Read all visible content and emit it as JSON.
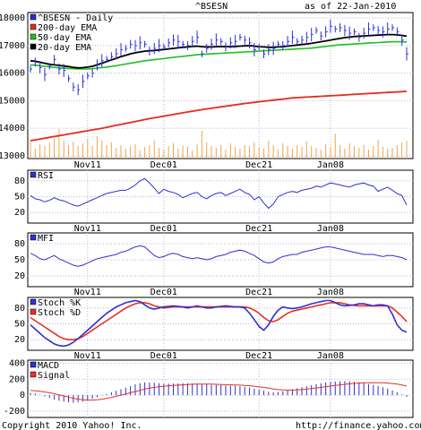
{
  "header": {
    "symbol": "^BSESN",
    "as_of": "as of 22-Jan-2010"
  },
  "footer": {
    "copyright": "Copyright 2010 Yahoo! Inc.",
    "url": "http://finance.yahoo.com/"
  },
  "colors": {
    "price": "#2b2bd6",
    "ema200": "#e52a1e",
    "ema50": "#1fbf1f",
    "ema20": "#000000",
    "volume": "#f0a64a",
    "grid": "#b8b8d8",
    "osc": "#3030d0",
    "signal": "#e83020"
  },
  "chart_data": [
    {
      "type": "line",
      "panel": "price",
      "date_ticks": [
        "Nov11",
        "Dec01",
        "Dec21",
        "Jan08"
      ],
      "y_ticks": [
        13000,
        14000,
        15000,
        16000,
        17000,
        18000
      ],
      "ylim": [
        12900,
        18200
      ],
      "legend": [
        "^BSESN - Daily",
        "200-day EMA",
        "50-day EMA",
        "20-day EMA"
      ],
      "sessions": 80,
      "price": [
        16150,
        16400,
        16200,
        15950,
        16250,
        16500,
        16150,
        16100,
        15800,
        15500,
        15400,
        15700,
        15900,
        16000,
        16300,
        16450,
        16500,
        16600,
        16700,
        16850,
        16900,
        17050,
        17000,
        17100,
        17050,
        16800,
        16900,
        17000,
        16950,
        17100,
        17200,
        17150,
        17050,
        17000,
        17150,
        17300,
        16700,
        16900,
        17050,
        17200,
        17150,
        16950,
        17100,
        17150,
        17300,
        17200,
        17100,
        16850,
        16950,
        16700,
        16850,
        16900,
        17050,
        17000,
        17150,
        17300,
        17150,
        17200,
        17300,
        17400,
        17550,
        17350,
        17500,
        17700,
        17600,
        17650,
        17550,
        17450,
        17500,
        17300,
        17450,
        17600,
        17650,
        17550,
        17500,
        17600,
        17650,
        17500,
        17200,
        16700
      ],
      "ema200": [
        13550,
        13580,
        13610,
        13640,
        13670,
        13700,
        13730,
        13760,
        13790,
        13820,
        13850,
        13880,
        13910,
        13940,
        13970,
        14000,
        14035,
        14070,
        14105,
        14140,
        14175,
        14210,
        14245,
        14280,
        14315,
        14350,
        14380,
        14410,
        14440,
        14470,
        14500,
        14530,
        14560,
        14590,
        14620,
        14650,
        14675,
        14700,
        14725,
        14750,
        14775,
        14800,
        14825,
        14850,
        14875,
        14900,
        14920,
        14940,
        14960,
        14980,
        15000,
        15020,
        15040,
        15060,
        15080,
        15100,
        15110,
        15120,
        15130,
        15140,
        15150,
        15160,
        15170,
        15180,
        15190,
        15200,
        15210,
        15220,
        15230,
        15240,
        15250,
        15260,
        15270,
        15280,
        15290,
        15300,
        15310,
        15320,
        15330,
        15340
      ],
      "ema50": [
        16300,
        16290,
        16270,
        16250,
        16230,
        16210,
        16190,
        16180,
        16170,
        16160,
        16150,
        16150,
        16155,
        16165,
        16180,
        16200,
        16220,
        16245,
        16270,
        16300,
        16330,
        16360,
        16390,
        16420,
        16450,
        16470,
        16490,
        16510,
        16530,
        16550,
        16570,
        16590,
        16610,
        16630,
        16650,
        16670,
        16680,
        16690,
        16700,
        16710,
        16720,
        16730,
        16740,
        16750,
        16760,
        16770,
        16780,
        16790,
        16800,
        16810,
        16820,
        16830,
        16840,
        16850,
        16860,
        16870,
        16880,
        16890,
        16900,
        16910,
        16930,
        16950,
        16970,
        16990,
        17010,
        17030,
        17040,
        17050,
        17060,
        17070,
        17080,
        17090,
        17100,
        17110,
        17120,
        17130,
        17140,
        17140,
        17140,
        17130
      ],
      "ema20": [
        16450,
        16430,
        16400,
        16360,
        16320,
        16300,
        16280,
        16260,
        16240,
        16210,
        16190,
        16200,
        16220,
        16250,
        16300,
        16360,
        16420,
        16480,
        16540,
        16600,
        16650,
        16700,
        16740,
        16770,
        16800,
        16810,
        16820,
        16840,
        16860,
        16880,
        16900,
        16920,
        16940,
        16950,
        16970,
        16980,
        16960,
        16950,
        16950,
        16960,
        16970,
        16960,
        16960,
        16970,
        16980,
        16990,
        17000,
        16980,
        16960,
        16950,
        16940,
        16940,
        16950,
        16960,
        16980,
        17000,
        17020,
        17040,
        17060,
        17080,
        17110,
        17140,
        17170,
        17200,
        17230,
        17260,
        17290,
        17310,
        17330,
        17340,
        17350,
        17360,
        17370,
        17380,
        17390,
        17400,
        17400,
        17390,
        17370,
        17340
      ],
      "volume": [
        0.4,
        0.22,
        0.32,
        0.28,
        0.35,
        0.45,
        0.66,
        0.4,
        0.3,
        0.38,
        0.28,
        0.34,
        0.44,
        0.28,
        0.5,
        0.4,
        0.3,
        0.36,
        0.24,
        0.3,
        0.22,
        0.28,
        0.32,
        0.18,
        0.26,
        0.3,
        0.4,
        0.24,
        0.2,
        0.28,
        0.34,
        0.22,
        0.3,
        0.26,
        0.18,
        0.32,
        0.62,
        0.36,
        0.28,
        0.24,
        0.3,
        0.2,
        0.34,
        0.26,
        0.22,
        0.3,
        0.28,
        0.36,
        0.24,
        0.22,
        0.4,
        0.3,
        0.2,
        0.34,
        0.28,
        0.22,
        0.3,
        0.26,
        0.38,
        0.28,
        0.24,
        0.2,
        0.32,
        0.26,
        0.56,
        0.3,
        0.22,
        0.34,
        0.28,
        0.24,
        0.3,
        0.2,
        0.28,
        0.42,
        0.26,
        0.22,
        0.24,
        0.3,
        0.36,
        0.4
      ]
    },
    {
      "type": "line",
      "panel": "RSI",
      "legend": [
        "RSI"
      ],
      "y_ticks": [
        20,
        50,
        80
      ],
      "ylim": [
        0,
        100
      ],
      "values": [
        52,
        46,
        44,
        40,
        43,
        48,
        44,
        42,
        38,
        34,
        32,
        36,
        40,
        44,
        48,
        52,
        56,
        58,
        60,
        62,
        62,
        66,
        72,
        80,
        84,
        76,
        66,
        56,
        64,
        60,
        58,
        54,
        48,
        52,
        56,
        58,
        50,
        46,
        52,
        56,
        58,
        52,
        56,
        60,
        64,
        58,
        54,
        44,
        50,
        38,
        28,
        36,
        50,
        54,
        58,
        60,
        58,
        62,
        64,
        66,
        70,
        68,
        72,
        76,
        74,
        72,
        70,
        68,
        72,
        74,
        76,
        72,
        70,
        60,
        64,
        68,
        62,
        56,
        52,
        34
      ]
    },
    {
      "type": "line",
      "panel": "MFI",
      "legend": [
        "MFI"
      ],
      "y_ticks": [
        20,
        50,
        80
      ],
      "ylim": [
        0,
        100
      ],
      "values": [
        62,
        58,
        52,
        50,
        54,
        58,
        52,
        48,
        44,
        40,
        38,
        40,
        44,
        48,
        52,
        54,
        56,
        58,
        60,
        64,
        66,
        70,
        74,
        76,
        74,
        66,
        58,
        54,
        56,
        60,
        62,
        60,
        56,
        54,
        52,
        54,
        52,
        50,
        52,
        56,
        58,
        60,
        64,
        66,
        68,
        66,
        62,
        58,
        52,
        46,
        44,
        46,
        52,
        56,
        58,
        60,
        60,
        64,
        66,
        68,
        70,
        72,
        74,
        74,
        72,
        70,
        68,
        66,
        64,
        62,
        60,
        60,
        60,
        58,
        56,
        58,
        58,
        56,
        54,
        50
      ]
    },
    {
      "type": "line",
      "panel": "Stochastic",
      "legend": [
        "Stoch %K",
        "Stoch %D"
      ],
      "y_ticks": [
        20,
        50,
        80
      ],
      "ylim": [
        0,
        100
      ],
      "k": [
        48,
        40,
        32,
        24,
        18,
        12,
        9,
        8,
        10,
        15,
        22,
        30,
        38,
        46,
        54,
        62,
        70,
        76,
        82,
        86,
        90,
        92,
        94,
        92,
        86,
        80,
        78,
        80,
        82,
        83,
        84,
        83,
        82,
        80,
        82,
        84,
        82,
        80,
        80,
        82,
        83,
        84,
        83,
        82,
        82,
        80,
        70,
        58,
        45,
        38,
        48,
        64,
        76,
        82,
        80,
        79,
        80,
        82,
        85,
        88,
        90,
        92,
        94,
        94,
        90,
        86,
        84,
        85,
        86,
        88,
        88,
        86,
        84,
        86,
        86,
        84,
        68,
        48,
        38,
        34
      ],
      "d": [
        62,
        56,
        50,
        44,
        38,
        32,
        26,
        22,
        20,
        20,
        22,
        26,
        32,
        38,
        44,
        50,
        56,
        62,
        68,
        74,
        80,
        84,
        88,
        90,
        90,
        88,
        84,
        82,
        80,
        81,
        82,
        82,
        82,
        82,
        82,
        82,
        82,
        82,
        82,
        82,
        82,
        82,
        82,
        82,
        82,
        82,
        80,
        76,
        70,
        62,
        56,
        54,
        58,
        64,
        70,
        74,
        76,
        78,
        80,
        82,
        84,
        86,
        88,
        90,
        90,
        90,
        88,
        86,
        85,
        84,
        84,
        84,
        84,
        84,
        84,
        84,
        80,
        72,
        64,
        54
      ]
    },
    {
      "type": "line",
      "panel": "MACD",
      "legend": [
        "MACD",
        "Signal"
      ],
      "y_ticks": [
        -200,
        0,
        200,
        400
      ],
      "ylim": [
        -280,
        440
      ],
      "macd": [
        30,
        20,
        5,
        -15,
        -35,
        -55,
        -70,
        -80,
        -90,
        -95,
        -90,
        -80,
        -65,
        -45,
        -25,
        -5,
        15,
        35,
        55,
        75,
        95,
        115,
        135,
        150,
        160,
        160,
        155,
        150,
        145,
        145,
        145,
        148,
        150,
        150,
        148,
        145,
        140,
        135,
        130,
        128,
        125,
        122,
        120,
        118,
        112,
        105,
        95,
        82,
        68,
        55,
        42,
        35,
        40,
        50,
        62,
        75,
        88,
        100,
        112,
        125,
        138,
        150,
        160,
        168,
        172,
        175,
        176,
        175,
        170,
        162,
        152,
        140,
        128,
        115,
        100,
        82,
        60,
        35,
        10,
        -20
      ],
      "signal": [
        60,
        55,
        48,
        40,
        30,
        18,
        5,
        -10,
        -25,
        -38,
        -50,
        -58,
        -62,
        -62,
        -58,
        -50,
        -40,
        -28,
        -15,
        0,
        15,
        30,
        45,
        60,
        75,
        88,
        98,
        106,
        112,
        118,
        122,
        126,
        130,
        134,
        137,
        140,
        140,
        140,
        138,
        136,
        134,
        132,
        130,
        128,
        126,
        122,
        118,
        112,
        105,
        98,
        88,
        78,
        70,
        65,
        63,
        64,
        66,
        70,
        76,
        82,
        90,
        98,
        106,
        114,
        122,
        130,
        136,
        142,
        148,
        152,
        155,
        157,
        158,
        157,
        155,
        152,
        146,
        138,
        128,
        115
      ]
    }
  ]
}
